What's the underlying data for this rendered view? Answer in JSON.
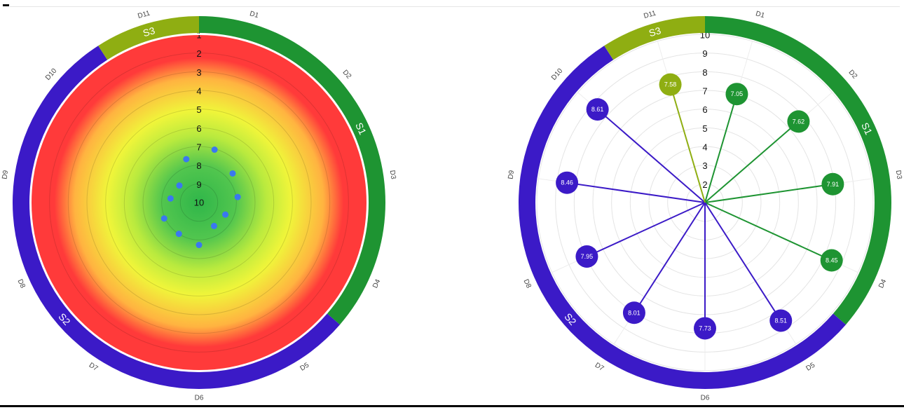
{
  "colors": {
    "S1": "#1e9432",
    "S2": "#3b1ac7",
    "S3": "#8fae12",
    "marker": "#3a78f0",
    "heat_center": "#2fb64a",
    "heat_mid": "#f0f53a",
    "heat_outer": "#ff3a3a"
  },
  "chart_data": [
    {
      "type": "radial-heatmap",
      "radial_axis": {
        "range": [
          1,
          10
        ],
        "direction": "center=10",
        "ticks": [
          "1",
          "2",
          "3",
          "4",
          "5",
          "6",
          "7",
          "8",
          "9",
          "10"
        ]
      },
      "segments": [
        {
          "name": "S1",
          "directions": [
            "D1",
            "D2",
            "D3",
            "D4"
          ]
        },
        {
          "name": "S2",
          "directions": [
            "D5",
            "D6",
            "D7",
            "D8",
            "D9",
            "D10"
          ]
        },
        {
          "name": "S3",
          "directions": [
            "D11"
          ]
        }
      ],
      "directions": [
        "D1",
        "D2",
        "D3",
        "D4",
        "D5",
        "D6",
        "D7",
        "D8",
        "D9",
        "D10",
        "D11"
      ],
      "points": [
        {
          "direction": "D1",
          "value": 7.05
        },
        {
          "direction": "D2",
          "value": 7.62
        },
        {
          "direction": "D3",
          "value": 7.91
        },
        {
          "direction": "D4",
          "value": 8.45
        },
        {
          "direction": "D5",
          "value": 8.51
        },
        {
          "direction": "D6",
          "value": 7.73
        },
        {
          "direction": "D7",
          "value": 8.01
        },
        {
          "direction": "D8",
          "value": 7.95
        },
        {
          "direction": "D9",
          "value": 8.46
        },
        {
          "direction": "D10",
          "value": 8.61
        },
        {
          "direction": "D11",
          "value": 7.58
        }
      ]
    },
    {
      "type": "radial-lollipop",
      "radial_axis": {
        "range": [
          1,
          10
        ],
        "direction": "center=1",
        "ticks": [
          "2",
          "3",
          "4",
          "5",
          "6",
          "7",
          "8",
          "9",
          "10"
        ]
      },
      "segments": [
        {
          "name": "S1",
          "directions": [
            "D1",
            "D2",
            "D3",
            "D4"
          ]
        },
        {
          "name": "S2",
          "directions": [
            "D5",
            "D6",
            "D7",
            "D8",
            "D9",
            "D10"
          ]
        },
        {
          "name": "S3",
          "directions": [
            "D11"
          ]
        }
      ],
      "directions": [
        "D1",
        "D2",
        "D3",
        "D4",
        "D5",
        "D6",
        "D7",
        "D8",
        "D9",
        "D10",
        "D11"
      ],
      "points": [
        {
          "direction": "D1",
          "value": 7.05,
          "label": "7.05",
          "segment": "S1"
        },
        {
          "direction": "D2",
          "value": 7.62,
          "label": "7.62",
          "segment": "S1"
        },
        {
          "direction": "D3",
          "value": 7.91,
          "label": "7.91",
          "segment": "S1"
        },
        {
          "direction": "D4",
          "value": 8.45,
          "label": "8.45",
          "segment": "S1"
        },
        {
          "direction": "D5",
          "value": 8.51,
          "label": "8.51",
          "segment": "S2"
        },
        {
          "direction": "D6",
          "value": 7.73,
          "label": "7.73",
          "segment": "S2"
        },
        {
          "direction": "D7",
          "value": 8.01,
          "label": "8.01",
          "segment": "S2"
        },
        {
          "direction": "D8",
          "value": 7.95,
          "label": "7.95",
          "segment": "S2"
        },
        {
          "direction": "D9",
          "value": 8.46,
          "label": "8.46",
          "segment": "S2"
        },
        {
          "direction": "D10",
          "value": 8.61,
          "label": "8.61",
          "segment": "S2"
        },
        {
          "direction": "D11",
          "value": 7.58,
          "label": "7.58",
          "segment": "S3"
        }
      ]
    }
  ]
}
